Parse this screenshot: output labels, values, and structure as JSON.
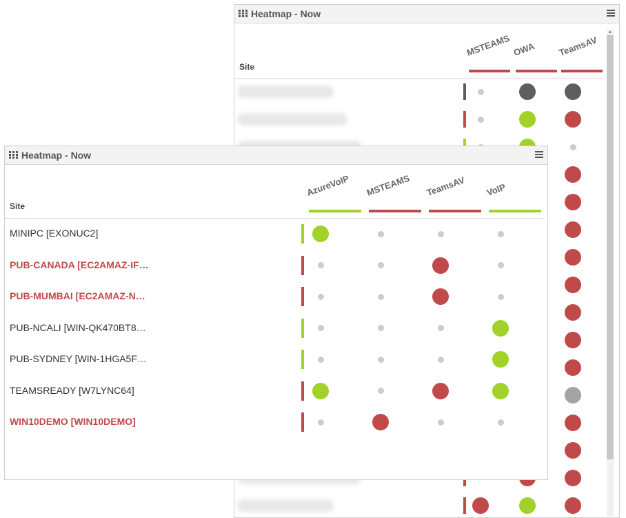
{
  "colors": {
    "green": "#a2d12a",
    "red": "#c04a4a",
    "dark": "#5e5e5e",
    "grey": "#a3a3a3",
    "small": "#cccccc"
  },
  "back_panel": {
    "title": "Heatmap - Now",
    "site_header": "Site",
    "columns": [
      {
        "label": "MSTEAMS",
        "status": "red"
      },
      {
        "label": "OWA",
        "status": "red"
      },
      {
        "label": "TeamsAV",
        "status": "red"
      }
    ],
    "rows": [
      {
        "status": "dark",
        "cells": [
          "small",
          "dark",
          "dark"
        ]
      },
      {
        "status": "red",
        "cells": [
          "small",
          "green",
          "red"
        ]
      },
      {
        "status": "green",
        "cells": [
          "small",
          "green",
          "small"
        ]
      },
      {
        "status": "red",
        "cells": [
          "",
          "",
          "red"
        ]
      },
      {
        "status": "red",
        "cells": [
          "",
          "",
          "red"
        ]
      },
      {
        "status": "red",
        "cells": [
          "",
          "",
          "red"
        ]
      },
      {
        "status": "red",
        "cells": [
          "",
          "",
          "red"
        ]
      },
      {
        "status": "red",
        "cells": [
          "",
          "",
          "red"
        ]
      },
      {
        "status": "red",
        "cells": [
          "",
          "",
          "red"
        ]
      },
      {
        "status": "red",
        "cells": [
          "",
          "",
          "red"
        ]
      },
      {
        "status": "red",
        "cells": [
          "",
          "",
          "red"
        ]
      },
      {
        "status": "red",
        "cells": [
          "",
          "",
          "grey"
        ]
      },
      {
        "status": "red",
        "cells": [
          "",
          "",
          "red"
        ]
      },
      {
        "status": "red",
        "cells": [
          "",
          "",
          "red"
        ]
      },
      {
        "status": "red",
        "cells": [
          "",
          "red",
          "red"
        ]
      },
      {
        "status": "red",
        "cells": [
          "red",
          "green",
          "red"
        ]
      }
    ]
  },
  "front_panel": {
    "title": "Heatmap - Now",
    "site_header": "Site",
    "columns": [
      {
        "label": "AzureVoIP",
        "status": "green"
      },
      {
        "label": "MSTEAMS",
        "status": "red"
      },
      {
        "label": "TeamsAV",
        "status": "red"
      },
      {
        "label": "VoIP",
        "status": "green"
      }
    ],
    "rows": [
      {
        "name": "MINIPC [EXONUC2]",
        "alert": false,
        "status": "green",
        "cells": [
          "green",
          "small",
          "small",
          "small"
        ]
      },
      {
        "name": "PUB-CANADA [EC2AMAZ-IF…",
        "alert": true,
        "status": "red",
        "cells": [
          "small",
          "small",
          "red",
          "small"
        ]
      },
      {
        "name": "PUB-MUMBAI [EC2AMAZ-N…",
        "alert": true,
        "status": "red",
        "cells": [
          "small",
          "small",
          "red",
          "small"
        ]
      },
      {
        "name": "PUB-NCALI [WIN-QK470BT8…",
        "alert": false,
        "status": "green",
        "cells": [
          "small",
          "small",
          "small",
          "green"
        ]
      },
      {
        "name": "PUB-SYDNEY [WIN-1HGA5F…",
        "alert": false,
        "status": "green",
        "cells": [
          "small",
          "small",
          "small",
          "green"
        ]
      },
      {
        "name": "TEAMSREADY [W7LYNC64]",
        "alert": false,
        "status": "red",
        "cells": [
          "green",
          "small",
          "red",
          "green"
        ]
      },
      {
        "name": "WIN10DEMO [WIN10DEMO]",
        "alert": true,
        "status": "red",
        "cells": [
          "small",
          "red",
          "small",
          "small"
        ]
      }
    ]
  }
}
